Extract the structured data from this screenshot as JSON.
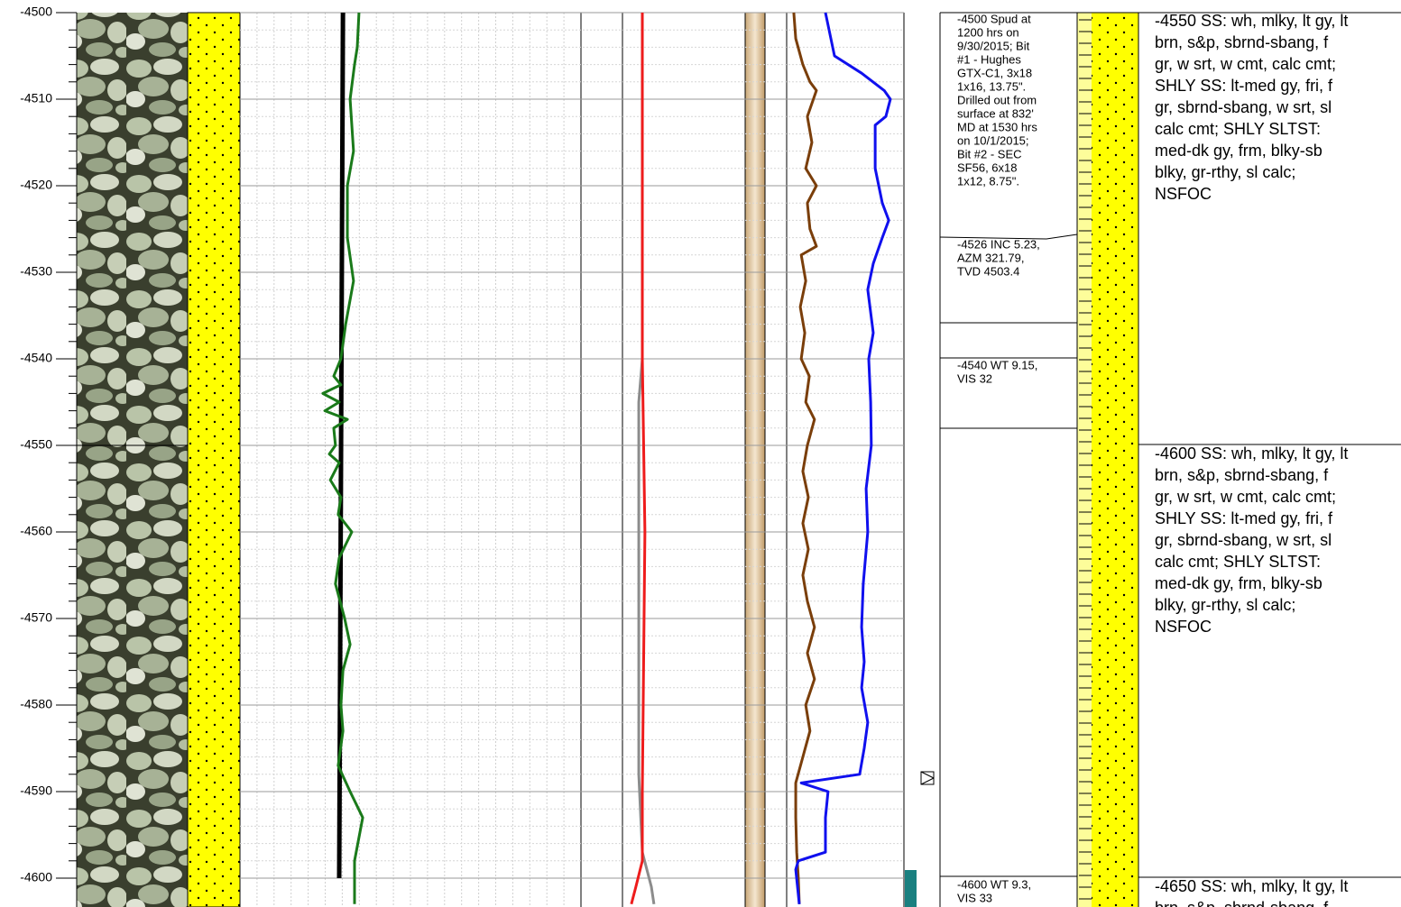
{
  "chart_data": {
    "type": "well-log",
    "ylim": [
      -4500,
      -4600
    ],
    "yticks": [
      -4500,
      -4510,
      -4520,
      -4530,
      -4540,
      -4550,
      -4560,
      -4570,
      -4580,
      -4590,
      -4600
    ],
    "grid": true,
    "tracks": [
      {
        "xlim": [
          0,
          100
        ],
        "series": [
          {
            "color": "#000000",
            "depth": [
              -4500,
              -4600
            ],
            "values": [
              30.2,
              29.1
            ]
          },
          {
            "color": "#1a7a1a",
            "depth": [
              -4500,
              -4504,
              -4506,
              -4510,
              -4516,
              -4520,
              -4526,
              -4531,
              -4536,
              -4540,
              -4542,
              -4543,
              -4544,
              -4545,
              -4546,
              -4547,
              -4548,
              -4550,
              -4551,
              -4552,
              -4554,
              -4556,
              -4558,
              -4560,
              -4563,
              -4566,
              -4570,
              -4573,
              -4576,
              -4580,
              -4583,
              -4587,
              -4590,
              -4593,
              -4598,
              -4603
            ],
            "values": [
              34.9,
              34.4,
              33.6,
              32.3,
              33.3,
              31.5,
              31.5,
              33.3,
              31.0,
              29.6,
              27.5,
              29.6,
              24.3,
              29.1,
              24.9,
              31.5,
              27.5,
              28.0,
              26.2,
              29.1,
              26.5,
              29.6,
              28.8,
              32.8,
              29.1,
              28.0,
              30.7,
              32.3,
              30.2,
              29.6,
              30.2,
              28.8,
              32.3,
              36.0,
              33.6,
              33.6
            ]
          }
        ]
      },
      {
        "xlim": [
          0,
          100
        ],
        "series": [
          {
            "color": "#8c8c8c",
            "depth": [
              -4500,
              -4540,
              -4545,
              -4588,
              -4597,
              -4601,
              -4603
            ],
            "values": [
              19.0,
              19.0,
              17.9,
              17.9,
              19.0,
              21.8,
              22.6
            ]
          },
          {
            "color": "#ee1c1c",
            "depth": [
              -4500,
              -4540,
              -4560,
              -4590,
              -4598,
              -4601,
              -4603
            ],
            "values": [
              19.0,
              19.0,
              19.8,
              19.0,
              19.0,
              17.0,
              15.6
            ]
          },
          {
            "color": "#7a3e0a",
            "depth": [
              -4500,
              -4503,
              -4506,
              -4508,
              -4509,
              -4512,
              -4515,
              -4518,
              -4520,
              -4522,
              -4525,
              -4527,
              -4528,
              -4531,
              -4534,
              -4537,
              -4540,
              -4542,
              -4545,
              -4547,
              -4550,
              -4553,
              -4556,
              -4559,
              -4562,
              -4565,
              -4568,
              -4571,
              -4574,
              -4577,
              -4580,
              -4583,
              -4586,
              -4589,
              -4593,
              -4597,
              -4600,
              -4603
            ],
            "values": [
              65.9,
              66.5,
              68.7,
              70.9,
              72.9,
              70.1,
              71.5,
              69.6,
              72.9,
              70.1,
              70.9,
              72.9,
              68.2,
              69.6,
              67.9,
              69.3,
              68.2,
              70.7,
              69.6,
              72.3,
              70.1,
              68.7,
              70.4,
              68.7,
              70.4,
              68.7,
              70.1,
              72.3,
              70.1,
              72.3,
              69.6,
              70.9,
              68.7,
              66.5,
              66.5,
              66.8,
              67.3,
              67.6
            ]
          },
          {
            "color": "#1010ee",
            "depth": [
              -4500,
              -4505,
              -4507,
              -4509,
              -4510,
              -4512,
              -4513,
              -4518,
              -4522,
              -4524,
              -4526,
              -4529,
              -4532,
              -4537,
              -4540,
              -4545,
              -4550,
              -4555,
              -4560,
              -4566,
              -4571,
              -4575,
              -4578,
              -4582,
              -4585,
              -4588,
              -4589,
              -4590,
              -4593,
              -4597,
              -4598,
              -4599,
              -4603
            ],
            "values": [
              75.7,
              78.5,
              86.9,
              93.9,
              95.8,
              94.4,
              91.1,
              91.1,
              93.3,
              95.3,
              93.3,
              90.5,
              88.8,
              90.5,
              89.1,
              89.7,
              89.9,
              88.3,
              88.8,
              87.4,
              86.9,
              87.7,
              86.9,
              88.8,
              87.7,
              86.3,
              68.2,
              76.5,
              75.7,
              75.7,
              67.3,
              66.5,
              67.6
            ]
          }
        ]
      }
    ]
  },
  "comments": [
    {
      "lines": [
        "-4500 Spud at",
        "1200 hrs on",
        "9/30/2015; Bit",
        "#1 - Hughes",
        "GTX-C1, 3x18",
        "1x16, 13.75\".",
        "Drilled out from",
        "surface at 832'",
        "MD at 1530 hrs",
        "on 10/1/2015;",
        "Bit #2 - SEC",
        "SF56, 6x18",
        "1x12, 8.75\"."
      ]
    },
    {
      "lines": [
        "-4526 INC 5.23,",
        "AZM 321.79,",
        "TVD 4503.4"
      ]
    },
    {
      "lines": [
        "-4540 WT 9.15,",
        "VIS 32"
      ]
    },
    {
      "lines": [
        "-4600 WT 9.3,",
        "VIS 33"
      ]
    }
  ],
  "descriptions": [
    {
      "lines": [
        "-4550 SS: wh, mlky, lt gy, lt",
        "brn, s&p, sbrnd-sbang, f",
        "gr, w srt, w cmt, calc cmt;",
        "SHLY SS: lt-med gy, fri, f",
        "gr, sbrnd-sbang, w srt, sl",
        "calc cmt; SHLY SLTST:",
        "med-dk gy, frm, blky-sb",
        "blky, gr-rthy, sl calc;",
        "NSFOC"
      ]
    },
    {
      "lines": [
        "-4600 SS: wh, mlky, lt gy, lt",
        "brn, s&p, sbrnd-sbang, f",
        "gr, w srt, w cmt, calc cmt;",
        "SHLY SS: lt-med gy, fri, f",
        "gr, sbrnd-sbang, w srt, sl",
        "calc cmt; SHLY SLTST:",
        "med-dk gy, frm, blky-sb",
        "blky, gr-rthy, sl calc;",
        "NSFOC"
      ]
    },
    {
      "lines": [
        "-4650 SS: wh, mlky, lt gy, lt",
        "brn, s&p, sbrnd-sbang, f"
      ]
    }
  ]
}
